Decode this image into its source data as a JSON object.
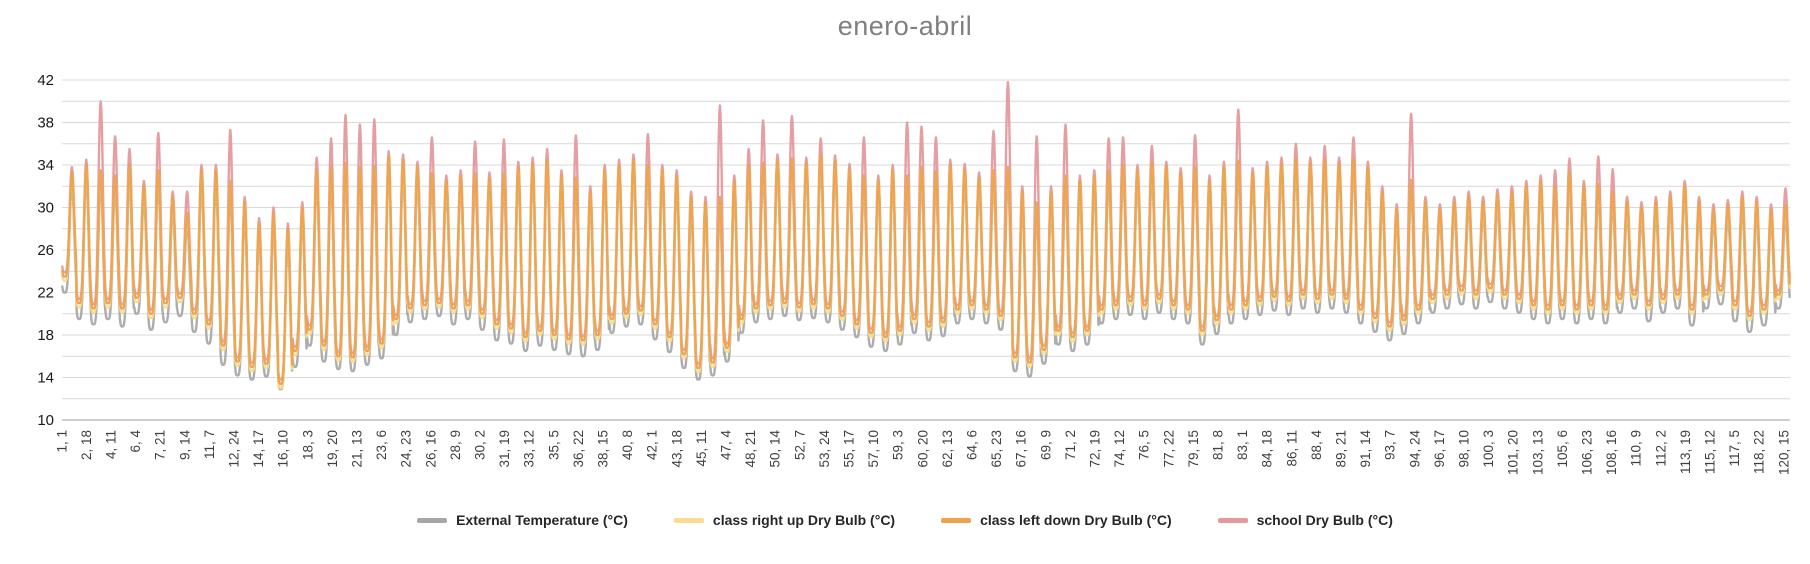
{
  "title": "enero-abril",
  "legend": [
    {
      "label": "External Temperature (°C)",
      "color": "#a6a6a6"
    },
    {
      "label": "class right up Dry Bulb (°C)",
      "color": "#f9dc8f"
    },
    {
      "label": "class left down Dry Bulb (°C)",
      "color": "#eda24c"
    },
    {
      "label": "school Dry Bulb (°C)",
      "color": "#e49a9d"
    }
  ],
  "chart_data": {
    "type": "line",
    "title": "enero-abril",
    "y_axis": {
      "min": 10,
      "max": 42,
      "tick_step": 4,
      "gridline_step": 2,
      "tick_labels": [
        10,
        14,
        18,
        22,
        26,
        30,
        34,
        38,
        42
      ]
    },
    "x_axis": {
      "label_format": "day, hour",
      "days": 120,
      "hours_per_day": 24,
      "first_tick_hour": 1,
      "tick_step_hours": 41,
      "tick_labels": [
        "1, 1",
        "2, 18",
        "4, 11",
        "6, 4",
        "7, 21",
        "9, 14",
        "11, 7",
        "12, 24",
        "14, 17",
        "16, 10",
        "18, 3",
        "19, 20",
        "21, 13",
        "23, 6",
        "24, 23",
        "26, 16",
        "28, 9",
        "30, 2",
        "31, 19",
        "33, 12",
        "35, 5",
        "36, 22",
        "38, 15",
        "40, 8",
        "42, 1",
        "43, 18",
        "45, 11",
        "47, 4",
        "48, 21",
        "50, 14",
        "52, 7",
        "53, 24",
        "55, 17",
        "57, 10",
        "59, 3",
        "60, 20",
        "62, 13",
        "64, 6",
        "65, 23",
        "67, 16",
        "69, 9",
        "71, 2",
        "72, 19",
        "74, 12",
        "76, 5",
        "77, 22",
        "79, 15",
        "81, 8",
        "83, 1",
        "84, 18",
        "86, 11",
        "88, 4",
        "89, 21",
        "91, 14",
        "93, 7",
        "94, 24",
        "96, 17",
        "98, 10",
        "100, 3",
        "101, 20",
        "103, 13",
        "105, 6",
        "106, 23",
        "108, 16",
        "110, 9",
        "112, 2",
        "113, 19",
        "115, 12",
        "117, 5",
        "118, 22",
        "120, 15"
      ]
    },
    "series": [
      {
        "key": "ext",
        "name": "External Temperature (°C)",
        "color": "#a9a9a9"
      },
      {
        "key": "up",
        "name": "class right up Dry Bulb (°C)",
        "color": "#f9dc8f"
      },
      {
        "key": "down",
        "name": "class left down Dry Bulb (°C)",
        "color": "#eda24c"
      },
      {
        "key": "school",
        "name": "school Dry Bulb (°C)",
        "color": "#e49a9d"
      }
    ],
    "draw_order": [
      "ext",
      "school",
      "up",
      "down"
    ],
    "daily_envelope": {
      "note": "estimated per-day max/min (°C); hourly curve troughs ~05h and peaks ~17h",
      "class_hi": [
        33.3,
        34,
        33.5,
        33,
        34,
        32,
        33.5,
        31,
        29.5,
        33.5,
        33.5,
        32.5,
        30.5,
        28.5,
        29.5,
        28,
        30,
        33.5,
        33.8,
        34.2,
        33.8,
        33.9,
        34.8,
        34.5,
        33.8,
        33.2,
        32.5,
        33,
        33.2,
        32.8,
        33.2,
        33.8,
        34.2,
        34.5,
        33,
        32.8,
        31.5,
        33.5,
        34,
        34.5,
        34,
        33.5,
        33,
        31,
        30.5,
        31,
        32.5,
        34,
        34.2,
        34.5,
        34.6,
        34.2,
        35,
        34.4,
        33.6,
        33,
        32.5,
        33.5,
        33,
        33.8,
        33.4,
        34,
        33.6,
        32.8,
        33.5,
        33.8,
        31.5,
        30.5,
        31.5,
        33,
        32.5,
        33,
        33.5,
        34,
        33.5,
        34.2,
        33.8,
        33.2,
        33.8,
        32.5,
        33.8,
        34.4,
        33.2,
        33.8,
        34.2,
        34.6,
        34.2,
        34.6,
        34.2,
        34.6,
        33.8,
        31.5,
        29.8,
        32.6,
        30.5,
        29.8,
        30.5,
        31,
        30.5,
        31.2,
        31.5,
        32,
        32.5,
        32,
        33.4,
        32,
        32.2,
        31.5,
        30.5,
        30,
        30.5,
        31,
        32,
        30.5,
        29.8,
        30.2,
        31,
        30.5,
        29.8,
        30.2
      ],
      "class_lo": [
        23.5,
        21,
        20.5,
        21,
        20.5,
        21.5,
        20,
        21,
        21.5,
        20,
        19,
        17,
        15.5,
        15,
        15.3,
        13.4,
        16.5,
        18.5,
        17,
        16,
        15.9,
        16.5,
        17.2,
        19.5,
        20.5,
        20.8,
        21,
        20.5,
        20.8,
        20,
        19,
        18.6,
        17.8,
        18.4,
        18,
        17.6,
        17.5,
        18,
        19.5,
        20,
        20.3,
        19,
        17.8,
        16.2,
        14.9,
        15.4,
        16.8,
        19.5,
        20.5,
        20.8,
        21,
        20.6,
        20.9,
        20.5,
        19.8,
        19,
        18.2,
        17.8,
        18.4,
        19.5,
        18.8,
        19.2,
        20.4,
        20.8,
        20.4,
        19.8,
        15.9,
        15.4,
        16.6,
        18.4,
        17.8,
        18.4,
        20.4,
        20.8,
        21.2,
        20.8,
        21.4,
        20.8,
        20.4,
        18.4,
        19.4,
        20.4,
        20.8,
        21.2,
        21.6,
        21.2,
        21.8,
        21.4,
        21.8,
        21.4,
        20.4,
        19.6,
        18.8,
        19.4,
        20.4,
        21.4,
        21.8,
        22.2,
        21.8,
        22.4,
        21.8,
        21.4,
        20.8,
        20.4,
        20.8,
        20.4,
        20.8,
        20.4,
        21.4,
        21.8,
        20.8,
        21.4,
        21.8,
        20.4,
        21.8,
        22.2,
        20.8,
        19.8,
        20.4,
        21.8
      ],
      "ext_lo": [
        22,
        19.5,
        19,
        19.5,
        18.8,
        20,
        18.5,
        19.2,
        19.8,
        18.3,
        17.2,
        15.2,
        14.2,
        13.8,
        14.1,
        12.9,
        15,
        17,
        15.5,
        14.8,
        14.6,
        15.2,
        15.8,
        18,
        19.2,
        19.5,
        19.8,
        19,
        19.5,
        18.5,
        17.5,
        17.2,
        16.5,
        17,
        16.6,
        16.2,
        16,
        16.6,
        18.2,
        18.8,
        19,
        17.6,
        16.4,
        14.9,
        13.8,
        14.2,
        15.5,
        18.2,
        19.2,
        19.5,
        19.8,
        19.4,
        19.6,
        19.2,
        18.5,
        17.8,
        16.9,
        16.5,
        17.1,
        18.2,
        17.5,
        17.9,
        19.1,
        19.5,
        19.1,
        18.5,
        14.6,
        14.1,
        15.3,
        17.1,
        16.5,
        17.1,
        19.1,
        19.5,
        19.9,
        19.5,
        20.1,
        19.5,
        19.1,
        17.1,
        18.1,
        19.1,
        19.5,
        19.9,
        20.3,
        19.9,
        20.5,
        20.1,
        20.5,
        20.1,
        19.1,
        18.3,
        17.5,
        18.1,
        19.1,
        20.1,
        20.5,
        20.9,
        20.5,
        21.1,
        20.5,
        20.1,
        19.5,
        19.1,
        19.5,
        19.1,
        19.5,
        19.1,
        20.1,
        20.5,
        19.3,
        20.1,
        20.5,
        18.9,
        20.5,
        20.9,
        19.3,
        18.3,
        18.9,
        20.5
      ],
      "school_hi": [
        33.8,
        34.5,
        40,
        36.7,
        35.5,
        32.5,
        37,
        31.5,
        31.5,
        34,
        34,
        37.3,
        31,
        29,
        30,
        28.5,
        30.5,
        34.7,
        36.5,
        38.7,
        37.8,
        38.3,
        35.3,
        35,
        34.3,
        36.6,
        33,
        33.5,
        36.2,
        33.3,
        36.4,
        34.3,
        34.7,
        35.5,
        33.5,
        36.8,
        32,
        34,
        34.5,
        35,
        36.9,
        34,
        33.5,
        31.5,
        31,
        39.6,
        33,
        35.5,
        38.2,
        35,
        38.6,
        34.7,
        36.5,
        34.9,
        34.1,
        36.6,
        33,
        34,
        38,
        37.6,
        36.6,
        34.5,
        34.1,
        33.3,
        37.2,
        41.8,
        32,
        36.7,
        32,
        37.8,
        33,
        33.5,
        36.5,
        36.6,
        34,
        35.8,
        34.3,
        33.7,
        36.8,
        33,
        34.3,
        39.2,
        33.7,
        34.3,
        34.7,
        36,
        34.7,
        35.8,
        34.7,
        36.6,
        34.3,
        32,
        30.3,
        38.8,
        31,
        30.3,
        31,
        31.5,
        31,
        31.7,
        32,
        32.5,
        33,
        33.5,
        34.6,
        32.5,
        34.8,
        33.6,
        31,
        30.5,
        31,
        31.5,
        32.5,
        31,
        30.3,
        30.7,
        31.5,
        31,
        30.3,
        31.8
      ]
    },
    "offsets": {
      "ext_hi_rel_class": -1.0,
      "up_rel_class": -0.4,
      "school_lo_rel_class": 0.4
    },
    "curve": {
      "trough_hour": 5,
      "sharpness": 2.1
    },
    "style": {
      "gridline": "#d9d9d9",
      "baseline": "#bfbfbf",
      "title_color": "#7f7f7f",
      "y_tick_color": "#1a1a1a",
      "x_tick_color": "#404040",
      "line_width": 2.4
    }
  }
}
